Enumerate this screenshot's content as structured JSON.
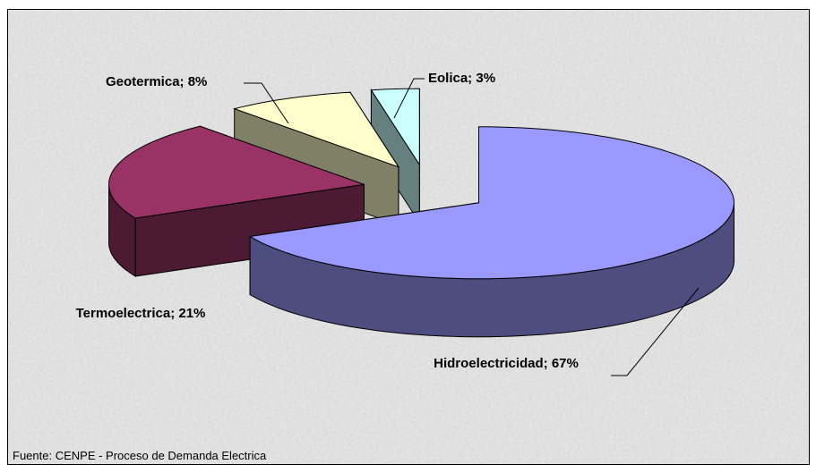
{
  "chart_data": {
    "type": "pie3d",
    "values": [
      67,
      21,
      8,
      3
    ],
    "data_labels": [
      "Hidroelectricidad; 67%",
      "Termoelectrica; 21%",
      "Geotermica; 8%",
      "Eolica; 3%"
    ],
    "colors": [
      "#9999ff",
      "#993366",
      "#ffffcc",
      "#ccffff"
    ],
    "source": "Fuente: CENPE - Proceso de Demanda Electrica"
  }
}
